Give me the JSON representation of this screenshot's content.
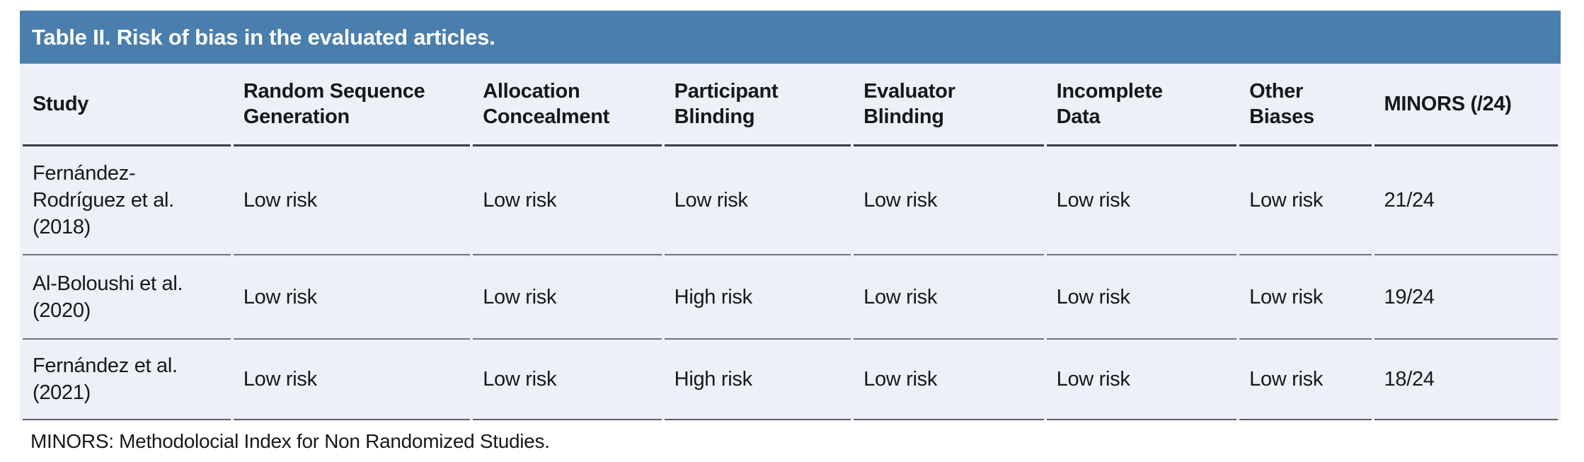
{
  "table": {
    "title": "Table II. Risk of bias in the evaluated articles.",
    "title_bar_color": "#4a7fad",
    "title_text_color": "#ffffff",
    "body_background_color": "#edf0f7",
    "columns": [
      {
        "label": "Study"
      },
      {
        "label": "Random Sequence\nGeneration"
      },
      {
        "label": "Allocation\nConcealment"
      },
      {
        "label": "Participant\nBlinding"
      },
      {
        "label": "Evaluator\nBlinding"
      },
      {
        "label": "Incomplete\nData"
      },
      {
        "label": "Other\nBiases"
      },
      {
        "label": "MINORS (/24)"
      }
    ],
    "rows": [
      {
        "study": "Fernández-\nRodríguez et al.\n(2018)",
        "random_sequence_generation": "Low risk",
        "allocation_concealment": "Low risk",
        "participant_blinding": "Low risk",
        "evaluator_blinding": "Low risk",
        "incomplete_data": "Low risk",
        "other_biases": "Low risk",
        "minors": "21/24"
      },
      {
        "study": "Al-Boloushi et al.\n(2020)",
        "random_sequence_generation": "Low risk",
        "allocation_concealment": "Low risk",
        "participant_blinding": "High risk",
        "evaluator_blinding": "Low risk",
        "incomplete_data": "Low risk",
        "other_biases": "Low risk",
        "minors": "19/24"
      },
      {
        "study": "Fernández et al.\n(2021)",
        "random_sequence_generation": "Low risk",
        "allocation_concealment": "Low risk",
        "participant_blinding": "High risk",
        "evaluator_blinding": "Low risk",
        "incomplete_data": "Low risk",
        "other_biases": "Low risk",
        "minors": "18/24"
      }
    ],
    "footnote": "MINORS: Methodolocial Index for Non Randomized Studies."
  }
}
